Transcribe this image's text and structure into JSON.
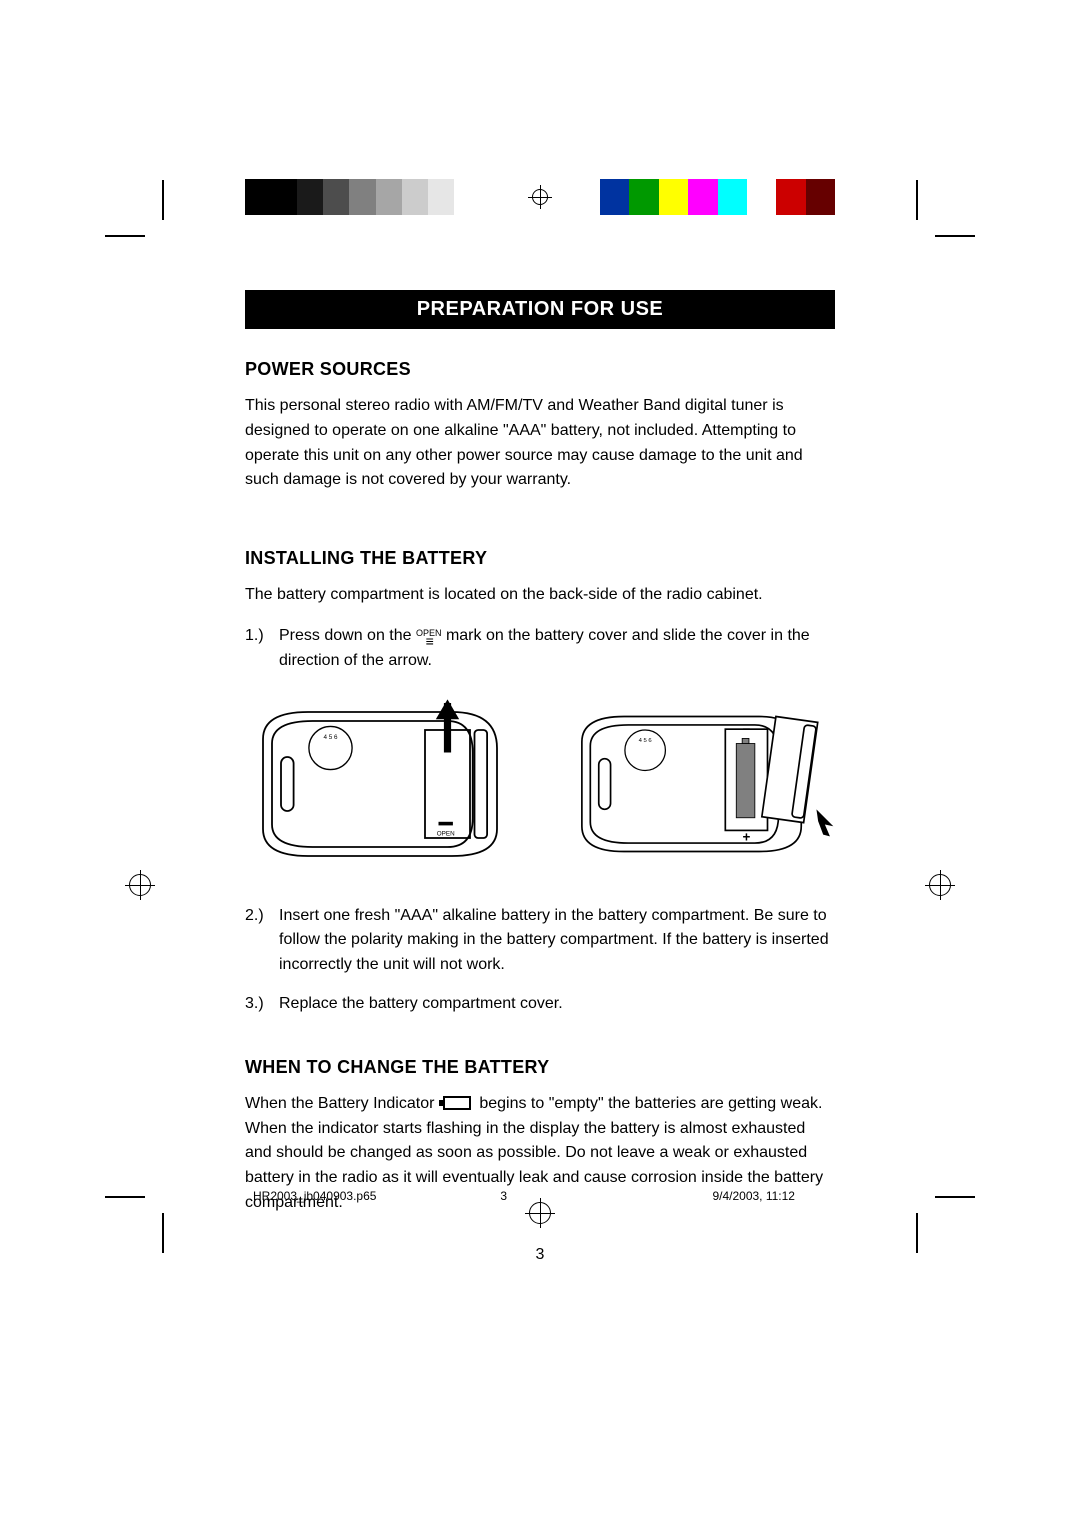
{
  "colorbar": {
    "left": [
      "#000000",
      "#000000",
      "#1a1a1a",
      "#4d4d4d",
      "#808080",
      "#a6a6a6",
      "#cccccc",
      "#e6e6e6",
      "#ffffff"
    ],
    "right": [
      "#0033a0",
      "#009900",
      "#ffff00",
      "#ff00ff",
      "#00ffff",
      "#ffffff",
      "#cc0000",
      "#660000"
    ]
  },
  "title": "PREPARATION FOR USE",
  "sections": {
    "power": {
      "heading": "POWER SOURCES",
      "body": "This personal stereo radio with AM/FM/TV and Weather Band digital tuner is designed to operate on one alkaline \"AAA\" battery, not included. Attempting to operate this unit on any other power source may cause damage to the unit and such damage is not covered by your warranty."
    },
    "install": {
      "heading": "INSTALLING THE BATTERY",
      "intro": "The battery compartment is located on the back-side of the radio cabinet.",
      "step1a": "Press down on the ",
      "step1b": " mark on the battery cover and slide the cover in the direction of the arrow.",
      "open_label": "OPEN",
      "step2": "Insert one fresh \"AAA\" alkaline battery in the battery compartment. Be sure to follow the polarity making in the battery compartment. If the battery is inserted incorrectly the unit will not work.",
      "step3": "Replace the battery compartment cover."
    },
    "change": {
      "heading": "WHEN TO CHANGE THE BATTERY",
      "body1": "When the Battery Indicator ",
      "body2": " begins to \"empty\" the batteries are getting weak. When the indicator starts flashing in the display the battery is almost exhausted and should be changed as soon as possible. Do not leave a weak or exhausted battery in the radio as it will eventually leak and cause corrosion inside the battery compartment."
    }
  },
  "page_number": "3",
  "footer": {
    "file": "HR2003_ib040903.p65",
    "page": "3",
    "date": "9/4/2003, 11:12"
  },
  "style": {
    "title_fontsize": 20,
    "heading_fontsize": 18,
    "body_fontsize": 16,
    "text_color": "#000000",
    "title_bg": "#000000",
    "title_fg": "#ffffff"
  }
}
